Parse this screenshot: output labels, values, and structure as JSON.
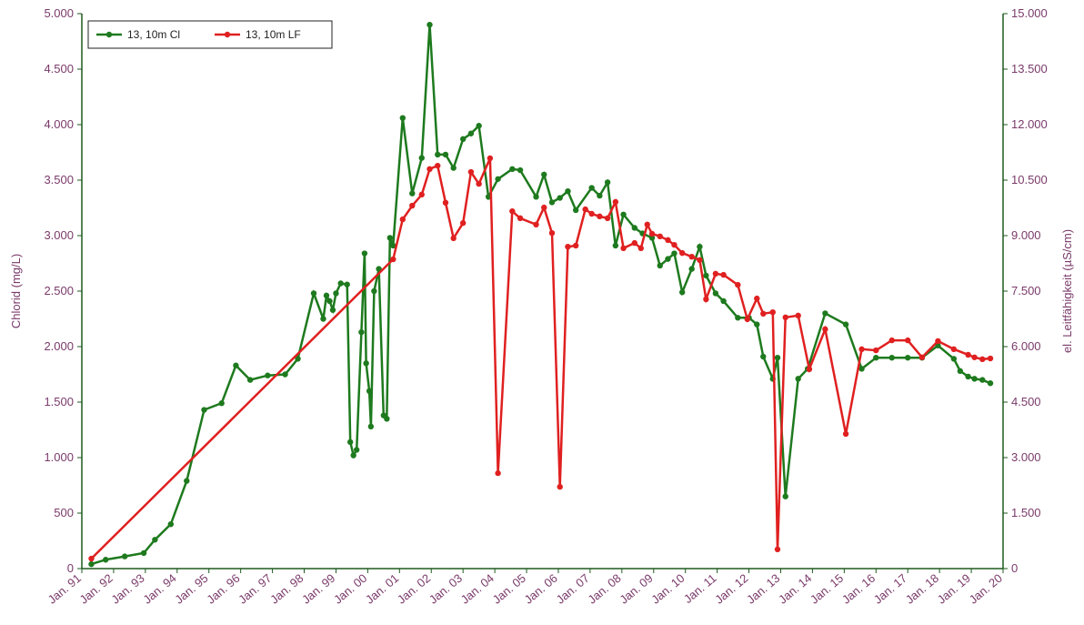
{
  "chart_data": {
    "type": "line",
    "y_label": "Chlorid (mg/L)",
    "y2_label": "el. Leitfähigkeit (µS/cm)",
    "xlim": [
      1991,
      2020
    ],
    "xticks": [
      {
        "value": 1991,
        "label": "Jan. 91"
      },
      {
        "value": 1992,
        "label": "Jan. 92"
      },
      {
        "value": 1993,
        "label": "Jan. 93"
      },
      {
        "value": 1994,
        "label": "Jan. 94"
      },
      {
        "value": 1995,
        "label": "Jan. 95"
      },
      {
        "value": 1996,
        "label": "Jan. 96"
      },
      {
        "value": 1997,
        "label": "Jan. 97"
      },
      {
        "value": 1998,
        "label": "Jan. 98"
      },
      {
        "value": 1999,
        "label": "Jan. 99"
      },
      {
        "value": 2000,
        "label": "Jan. 00"
      },
      {
        "value": 2001,
        "label": "Jan. 01"
      },
      {
        "value": 2002,
        "label": "Jan. 02"
      },
      {
        "value": 2003,
        "label": "Jan. 03"
      },
      {
        "value": 2004,
        "label": "Jan. 04"
      },
      {
        "value": 2005,
        "label": "Jan. 05"
      },
      {
        "value": 2006,
        "label": "Jan. 06"
      },
      {
        "value": 2007,
        "label": "Jan. 07"
      },
      {
        "value": 2008,
        "label": "Jan. 08"
      },
      {
        "value": 2009,
        "label": "Jan. 09"
      },
      {
        "value": 2010,
        "label": "Jan. 10"
      },
      {
        "value": 2011,
        "label": "Jan. 11"
      },
      {
        "value": 2012,
        "label": "Jan. 12"
      },
      {
        "value": 2013,
        "label": "Jan. 13"
      },
      {
        "value": 2014,
        "label": "Jan. 14"
      },
      {
        "value": 2015,
        "label": "Jan. 15"
      },
      {
        "value": 2016,
        "label": "Jan. 16"
      },
      {
        "value": 2017,
        "label": "Jan. 17"
      },
      {
        "value": 2018,
        "label": "Jan. 18"
      },
      {
        "value": 2019,
        "label": "Jan. 19"
      },
      {
        "value": 2020,
        "label": "Jan. 20"
      }
    ],
    "ylim": [
      0,
      5000
    ],
    "yticks": [
      0,
      500,
      {
        "value": 1000,
        "label": "1.000"
      },
      {
        "value": 1500,
        "label": "1.500"
      },
      {
        "value": 2000,
        "label": "2.000"
      },
      {
        "value": 2500,
        "label": "2.500"
      },
      {
        "value": 3000,
        "label": "3.000"
      },
      {
        "value": 3500,
        "label": "3.500"
      },
      {
        "value": 4000,
        "label": "4.000"
      },
      {
        "value": 4500,
        "label": "4.500"
      },
      {
        "value": 5000,
        "label": "5.000"
      }
    ],
    "y2lim": [
      0,
      15000
    ],
    "y2ticks": [
      0,
      {
        "value": 1500,
        "label": "1.500"
      },
      {
        "value": 3000,
        "label": "3.000"
      },
      {
        "value": 4500,
        "label": "4.500"
      },
      {
        "value": 6000,
        "label": "6.000"
      },
      {
        "value": 7500,
        "label": "7.500"
      },
      {
        "value": 9000,
        "label": "9.000"
      },
      {
        "value": 10500,
        "label": "10.500"
      },
      {
        "value": 12000,
        "label": "12.000"
      },
      {
        "value": 13500,
        "label": "13.500"
      },
      {
        "value": 15000,
        "label": "15.000"
      }
    ],
    "legend": "upper left",
    "series": [
      {
        "name": "13, 10m Cl",
        "color": "#1e7a1e",
        "axis": "y",
        "x": [
          1991.3,
          1991.75,
          1992.35,
          1992.95,
          1993.3,
          1993.8,
          1994.3,
          1994.85,
          1995.4,
          1995.85,
          1996.3,
          1996.85,
          1997.4,
          1997.8,
          1998.3,
          1998.6,
          1998.7,
          1998.8,
          1998.9,
          1999.0,
          1999.15,
          1999.35,
          1999.45,
          1999.55,
          1999.65,
          1999.8,
          1999.9,
          1999.95,
          2000.05,
          2000.1,
          2000.2,
          2000.35,
          2000.5,
          2000.6,
          2000.7,
          2000.8,
          2001.1,
          2001.4,
          2001.7,
          2001.95,
          2002.2,
          2002.45,
          2002.7,
          2003.0,
          2003.25,
          2003.5,
          2003.8,
          2004.1,
          2004.55,
          2004.8,
          2005.3,
          2005.55,
          2005.8,
          2006.05,
          2006.3,
          2006.55,
          2007.05,
          2007.3,
          2007.55,
          2007.8,
          2008.05,
          2008.4,
          2008.65,
          2008.95,
          2009.2,
          2009.45,
          2009.65,
          2009.9,
          2010.2,
          2010.45,
          2010.65,
          2010.95,
          2011.2,
          2011.65,
          2012.0,
          2012.25,
          2012.45,
          2012.75,
          2012.9,
          2013.15,
          2013.55,
          2013.85,
          2014.4,
          2015.05,
          2015.55,
          2016.0,
          2016.5,
          2017.0,
          2017.45,
          2017.95,
          2018.45,
          2018.65,
          2018.9,
          2019.1,
          2019.35,
          2019.6
        ],
        "values": [
          40,
          80,
          110,
          140,
          260,
          400,
          790,
          1430,
          1490,
          1830,
          1700,
          1740,
          1750,
          1890,
          2480,
          2250,
          2460,
          2410,
          2330,
          2480,
          2570,
          2560,
          1140,
          1020,
          1070,
          2130,
          2840,
          1850,
          1600,
          1280,
          2500,
          2700,
          1380,
          1350,
          2980,
          2910,
          4060,
          3380,
          3700,
          4900,
          3730,
          3730,
          3610,
          3870,
          3920,
          3990,
          3350,
          3510,
          3600,
          3590,
          3350,
          3550,
          3300,
          3340,
          3400,
          3230,
          3430,
          3360,
          3480,
          2910,
          3190,
          3070,
          3020,
          2980,
          2730,
          2790,
          2840,
          2490,
          2700,
          2900,
          2640,
          2480,
          2410,
          2260,
          2260,
          2200,
          1910,
          1710,
          1900,
          650,
          1710,
          1800,
          2300,
          2200,
          1800,
          1900,
          1900,
          1900,
          1900,
          2010,
          1890,
          1780,
          1730,
          1710,
          1700,
          1670
        ]
      },
      {
        "name": "13, 10m LF",
        "color": "#e02020",
        "axis": "y2",
        "x": [
          1991.3,
          2000.8,
          2001.1,
          2001.4,
          2001.7,
          2001.95,
          2002.2,
          2002.45,
          2002.7,
          2003.0,
          2003.25,
          2003.5,
          2003.85,
          2004.1,
          2004.55,
          2004.8,
          2005.3,
          2005.55,
          2005.8,
          2006.05,
          2006.3,
          2006.55,
          2006.85,
          2007.05,
          2007.3,
          2007.55,
          2007.8,
          2008.05,
          2008.4,
          2008.6,
          2008.8,
          2008.95,
          2009.2,
          2009.45,
          2009.65,
          2009.9,
          2010.2,
          2010.45,
          2010.65,
          2010.95,
          2011.2,
          2011.65,
          2011.95,
          2012.25,
          2012.45,
          2012.75,
          2012.9,
          2013.15,
          2013.55,
          2013.9,
          2014.4,
          2015.05,
          2015.55,
          2016.0,
          2016.5,
          2017.0,
          2017.45,
          2017.95,
          2018.45,
          2018.9,
          2019.1,
          2019.35,
          2019.6
        ],
        "values": [
          270,
          8360,
          9440,
          9810,
          10110,
          10800,
          10890,
          9890,
          8930,
          9340,
          10720,
          10400,
          11090,
          2580,
          9660,
          9470,
          9300,
          9760,
          9070,
          2210,
          8700,
          8730,
          9710,
          9590,
          9520,
          9470,
          9910,
          8660,
          8800,
          8660,
          9300,
          9050,
          8980,
          8880,
          8750,
          8530,
          8430,
          8340,
          7280,
          7970,
          7940,
          7670,
          6740,
          7300,
          6890,
          6930,
          520,
          6790,
          6840,
          5390,
          6470,
          3640,
          5930,
          5900,
          6170,
          6170,
          5710,
          6150,
          5930,
          5780,
          5710,
          5660,
          5680
        ]
      }
    ]
  }
}
